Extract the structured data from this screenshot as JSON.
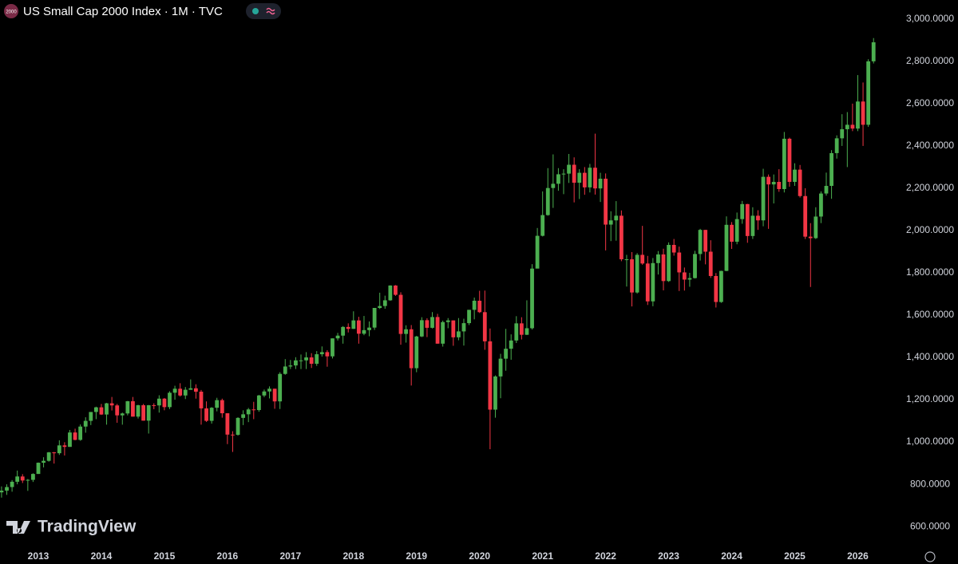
{
  "chart_data": {
    "type": "candlestick",
    "title": "US Small Cap 2000 Index · 1M · TVC",
    "symbol_badge": "2000",
    "watermark": "TradingView",
    "categories": [
      null,
      null,
      null,
      null,
      null,
      null,
      null,
      "2013",
      null,
      null,
      null,
      null,
      null,
      null,
      null,
      null,
      null,
      null,
      null,
      "2014",
      null,
      null,
      null,
      null,
      null,
      null,
      null,
      null,
      null,
      null,
      null,
      "2015",
      null,
      null,
      null,
      null,
      null,
      null,
      null,
      null,
      null,
      null,
      null,
      "2016",
      null,
      null,
      null,
      null,
      null,
      null,
      null,
      null,
      null,
      null,
      null,
      "2017",
      null,
      null,
      null,
      null,
      null,
      null,
      null,
      null,
      null,
      null,
      null,
      "2018",
      null,
      null,
      null,
      null,
      null,
      null,
      null,
      null,
      null,
      null,
      null,
      "2019",
      null,
      null,
      null,
      null,
      null,
      null,
      null,
      null,
      null,
      null,
      null,
      "2020",
      null,
      null,
      null,
      null,
      null,
      null,
      null,
      null,
      null,
      null,
      null,
      "2021",
      null,
      null,
      null,
      null,
      null,
      null,
      null,
      null,
      null,
      null,
      null,
      "2022",
      null,
      null,
      null,
      null,
      null,
      null,
      null,
      null,
      null,
      null,
      null,
      "2023",
      null,
      null,
      null,
      null,
      null,
      null,
      null,
      null,
      null,
      null,
      null,
      "2024",
      null,
      null,
      null,
      null,
      null,
      null,
      null,
      null,
      null,
      null,
      null,
      "2025",
      null,
      null,
      null,
      null,
      null,
      null,
      null,
      null,
      null,
      null,
      null,
      "2026",
      null,
      null,
      null
    ],
    "open": [
      762,
      770,
      787,
      812,
      837,
      818,
      821,
      849,
      902,
      911,
      951,
      947,
      984,
      977,
      1045,
      1010,
      1073,
      1100,
      1142,
      1164,
      1130,
      1183,
      1173,
      1126,
      1135,
      1193,
      1120,
      1174,
      1101,
      1174,
      1173,
      1205,
      1165,
      1233,
      1252,
      1220,
      1247,
      1254,
      1238,
      1159,
      1100,
      1162,
      1198,
      1136,
      1035,
      1034,
      1114,
      1131,
      1154,
      1151,
      1220,
      1239,
      1252,
      1192,
      1322,
      1357,
      1362,
      1386,
      1386,
      1400,
      1370,
      1415,
      1425,
      1405,
      1490,
      1503,
      1544,
      1535,
      1575,
      1512,
      1529,
      1541,
      1634,
      1643,
      1670,
      1740,
      1696,
      1511,
      1533,
      1349,
      1499,
      1576,
      1540,
      1591,
      1465,
      1567,
      1575,
      1495,
      1523,
      1562,
      1625,
      1668,
      1614,
      1476,
      1153,
      1310,
      1394,
      1441,
      1480,
      1561,
      1507,
      1538,
      1820,
      1975,
      2073,
      2201,
      2221,
      2266,
      2269,
      2311,
      2226,
      2273,
      2204,
      2297,
      2199,
      2245,
      2028,
      2048,
      2070,
      1864,
      1864,
      1707,
      1885,
      1844,
      1665,
      1846,
      1887,
      1761,
      1932,
      1896,
      1802,
      1768,
      1775,
      1889,
      2003,
      1900,
      1785,
      1662,
      1809,
      2027,
      1947,
      2054,
      2125,
      1974,
      2070,
      2048,
      2254,
      2218,
      2230,
      2196,
      2434,
      2230,
      2288,
      2163,
      1971,
      1964,
      2066,
      2175,
      2211,
      2366,
      2436,
      2479,
      2500,
      2482,
      2610,
      2500,
      2800
    ],
    "high": [
      790,
      800,
      820,
      865,
      848,
      825,
      852,
      903,
      928,
      953,
      953,
      1008,
      999,
      1057,
      1063,
      1083,
      1117,
      1142,
      1167,
      1180,
      1185,
      1213,
      1180,
      1139,
      1194,
      1213,
      1176,
      1180,
      1175,
      1183,
      1221,
      1208,
      1240,
      1266,
      1278,
      1260,
      1296,
      1273,
      1246,
      1192,
      1165,
      1209,
      1205,
      1136,
      1051,
      1117,
      1150,
      1161,
      1190,
      1223,
      1248,
      1263,
      1252,
      1330,
      1392,
      1388,
      1401,
      1414,
      1425,
      1420,
      1430,
      1452,
      1434,
      1490,
      1516,
      1548,
      1561,
      1618,
      1592,
      1596,
      1570,
      1634,
      1706,
      1692,
      1741,
      1742,
      1708,
      1552,
      1553,
      1502,
      1590,
      1585,
      1614,
      1606,
      1574,
      1586,
      1575,
      1586,
      1583,
      1625,
      1683,
      1715,
      1716,
      1537,
      1315,
      1417,
      1535,
      1509,
      1595,
      1590,
      1670,
      1841,
      2012,
      2185,
      2295,
      2360,
      2295,
      2290,
      2362,
      2346,
      2290,
      2300,
      2315,
      2458,
      2273,
      2270,
      2091,
      2139,
      2095,
      1885,
      1898,
      1893,
      2022,
      1880,
      1870,
      1903,
      1914,
      1944,
      1960,
      1924,
      1825,
      1800,
      1904,
      2008,
      2003,
      1954,
      1799,
      1810,
      2067,
      2040,
      2085,
      2140,
      2126,
      2110,
      2096,
      2292,
      2265,
      2265,
      2290,
      2466,
      2439,
      2318,
      2310,
      2200,
      2035,
      2110,
      2185,
      2274,
      2380,
      2450,
      2550,
      2560,
      2600,
      2735,
      2700,
      2810,
      2910
    ],
    "low": [
      737,
      750,
      765,
      800,
      806,
      769,
      811,
      849,
      880,
      907,
      898,
      939,
      936,
      977,
      1008,
      1006,
      1044,
      1080,
      1108,
      1128,
      1082,
      1149,
      1091,
      1082,
      1126,
      1120,
      1111,
      1101,
      1040,
      1155,
      1139,
      1150,
      1156,
      1200,
      1215,
      1203,
      1247,
      1205,
      1082,
      1095,
      1087,
      1145,
      1115,
      990,
      953,
      1030,
      1080,
      1094,
      1108,
      1143,
      1212,
      1206,
      1157,
      1156,
      1318,
      1345,
      1345,
      1345,
      1345,
      1350,
      1360,
      1404,
      1356,
      1395,
      1480,
      1465,
      1518,
      1535,
      1465,
      1505,
      1500,
      1530,
      1629,
      1630,
      1668,
      1691,
      1460,
      1470,
      1267,
      1330,
      1496,
      1496,
      1537,
      1465,
      1451,
      1538,
      1455,
      1481,
      1456,
      1553,
      1580,
      1610,
      1436,
      966,
      1115,
      1207,
      1337,
      1389,
      1468,
      1485,
      1506,
      1532,
      1821,
      1972,
      2070,
      2107,
      2188,
      2172,
      2225,
      2133,
      2149,
      2169,
      2180,
      2170,
      2135,
      1906,
      1950,
      1952,
      1855,
      1735,
      1641,
      1702,
      1838,
      1648,
      1642,
      1792,
      1717,
      1757,
      1881,
      1714,
      1716,
      1734,
      1773,
      1858,
      1840,
      1776,
      1636,
      1658,
      1808,
      1913,
      1935,
      2032,
      1942,
      1960,
      2003,
      2020,
      2008,
      2128,
      2183,
      2180,
      2207,
      2211,
      2156,
      1960,
      1733,
      1960,
      2035,
      2165,
      2150,
      2340,
      2400,
      2300,
      2470,
      2470,
      2400,
      2490,
      2790
    ],
    "close": [
      770,
      787,
      812,
      837,
      818,
      821,
      849,
      902,
      911,
      951,
      947,
      984,
      977,
      1045,
      1010,
      1073,
      1100,
      1142,
      1164,
      1130,
      1183,
      1173,
      1126,
      1135,
      1193,
      1120,
      1174,
      1101,
      1174,
      1173,
      1205,
      1165,
      1233,
      1252,
      1220,
      1247,
      1254,
      1238,
      1159,
      1100,
      1162,
      1198,
      1136,
      1035,
      1034,
      1114,
      1131,
      1154,
      1151,
      1220,
      1239,
      1252,
      1192,
      1322,
      1357,
      1362,
      1386,
      1386,
      1400,
      1370,
      1415,
      1425,
      1405,
      1490,
      1503,
      1544,
      1535,
      1575,
      1512,
      1529,
      1541,
      1634,
      1643,
      1670,
      1740,
      1696,
      1511,
      1533,
      1349,
      1499,
      1576,
      1540,
      1591,
      1465,
      1567,
      1575,
      1495,
      1523,
      1562,
      1625,
      1668,
      1614,
      1476,
      1153,
      1310,
      1394,
      1441,
      1480,
      1561,
      1507,
      1538,
      1820,
      1975,
      2073,
      2201,
      2221,
      2266,
      2269,
      2311,
      2226,
      2273,
      2204,
      2297,
      2199,
      2245,
      2028,
      2048,
      2070,
      1864,
      1864,
      1707,
      1885,
      1844,
      1665,
      1846,
      1887,
      1761,
      1932,
      1896,
      1802,
      1768,
      1775,
      1889,
      2003,
      1900,
      1785,
      1662,
      1809,
      2027,
      1947,
      2054,
      2125,
      1974,
      2070,
      2048,
      2254,
      2218,
      2230,
      2196,
      2434,
      2230,
      2288,
      2163,
      1971,
      1964,
      2066,
      2175,
      2211,
      2366,
      2436,
      2479,
      2500,
      2482,
      2610,
      2500,
      2800,
      2890
    ],
    "up_color": "#4caf50",
    "down_color": "#f23645",
    "ylim": [
      525,
      3090
    ],
    "yticks": [
      {
        "value": 600,
        "label": "600.0000"
      },
      {
        "value": 800,
        "label": "800.0000"
      },
      {
        "value": 1000,
        "label": "1,000.0000"
      },
      {
        "value": 1200,
        "label": "1,200.0000"
      },
      {
        "value": 1400,
        "label": "1,400.0000"
      },
      {
        "value": 1600,
        "label": "1,600.0000"
      },
      {
        "value": 1800,
        "label": "1,800.0000"
      },
      {
        "value": 2000,
        "label": "2,000.0000"
      },
      {
        "value": 2200,
        "label": "2,200.0000"
      },
      {
        "value": 2400,
        "label": "2,400.0000"
      },
      {
        "value": 2600,
        "label": "2,600.0000"
      },
      {
        "value": 2800,
        "label": "2,800.0000"
      },
      {
        "value": 3000,
        "label": "3,000.0000"
      }
    ]
  }
}
